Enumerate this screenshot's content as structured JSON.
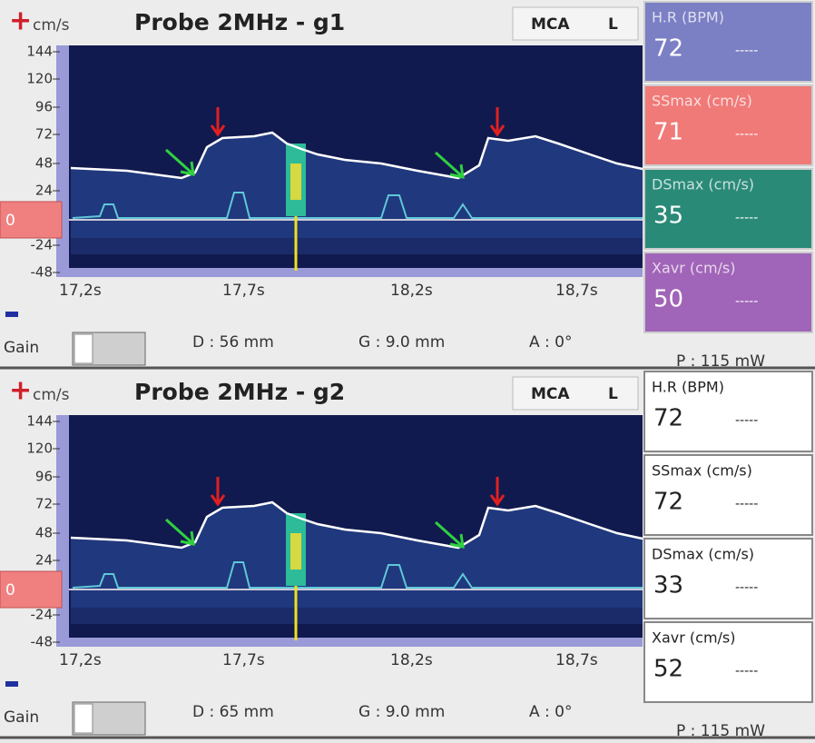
{
  "panels": [
    {
      "plus": "+",
      "unit": "cm/s",
      "title": "Probe 2MHz - g1",
      "vessel": "MCA",
      "side": "L",
      "y_ticks": [
        144,
        120,
        96,
        72,
        48,
        24,
        -24,
        -48
      ],
      "baseline": 0,
      "x_ticks": [
        "17,2s",
        "17,7s",
        "18,2s",
        "18,7s"
      ],
      "gain_label": "Gain",
      "depth": "D :  56 mm",
      "gate": "G : 9.0 mm",
      "angle": "A : 0°",
      "power": "P :  115 mW",
      "measurements": [
        {
          "label": "H.R (BPM)",
          "value": 72,
          "previous": "-----"
        },
        {
          "label": "SSmax (cm/s)",
          "value": 71,
          "previous": "-----"
        },
        {
          "label": "DSmax (cm/s)",
          "value": 35,
          "previous": "-----"
        },
        {
          "label": "Xavr (cm/s)",
          "value": 50,
          "previous": "-----"
        }
      ]
    },
    {
      "plus": "+",
      "unit": "cm/s",
      "title": "Probe 2MHz - g2",
      "vessel": "MCA",
      "side": "L",
      "y_ticks": [
        144,
        120,
        96,
        72,
        48,
        24,
        -24,
        -48
      ],
      "baseline": 0,
      "x_ticks": [
        "17,2s",
        "17,7s",
        "18,2s",
        "18,7s"
      ],
      "gain_label": "Gain",
      "depth": "D :  65 mm",
      "gate": "G : 9.0 mm",
      "angle": "A : 0°",
      "power": "P :  115 mW",
      "measurements": [
        {
          "label": "H.R (BPM)",
          "value": 72,
          "previous": "-----"
        },
        {
          "label": "SSmax (cm/s)",
          "value": 72,
          "previous": "-----"
        },
        {
          "label": "DSmax (cm/s)",
          "value": 33,
          "previous": "-----"
        },
        {
          "label": "Xavr (cm/s)",
          "value": 52,
          "previous": "-----"
        }
      ]
    }
  ]
}
